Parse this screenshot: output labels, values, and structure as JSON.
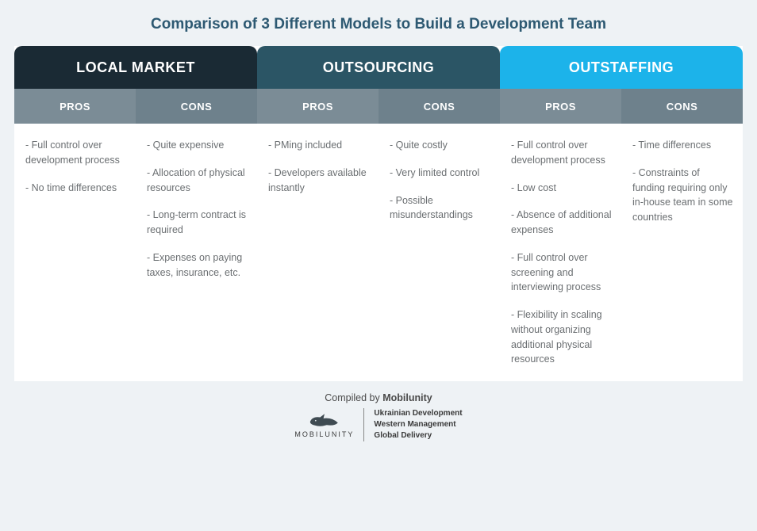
{
  "title": "Comparison of 3 Different Models to Build a Development Team",
  "labels": {
    "pros": "PROS",
    "cons": "CONS"
  },
  "models": [
    {
      "name": "LOCAL MARKET",
      "header_bg": "#1a2a34",
      "pros_bg": "#7b8c96",
      "cons_bg": "#6e818c",
      "pros": [
        "Full control over development process",
        "No time differences"
      ],
      "cons": [
        "Quite expensive",
        "Allocation of physical resources",
        "Long-term contract is required",
        "Expenses on paying taxes, insurance, etc."
      ]
    },
    {
      "name": "OUTSOURCING",
      "header_bg": "#2b5565",
      "pros_bg": "#7b8c96",
      "cons_bg": "#6e818c",
      "pros": [
        "PMing included",
        "Developers available instantly"
      ],
      "cons": [
        "Quite costly",
        "Very limited control",
        "Possible misunderstandings"
      ]
    },
    {
      "name": "OUTSTAFFING",
      "header_bg": "#1cb3ea",
      "pros_bg": "#7b8c96",
      "cons_bg": "#6e818c",
      "pros": [
        "Full control over development process",
        "Low cost",
        "Absence of additional expenses",
        "Full control over screening and interviewing process",
        "Flexibility in scaling without organizing additional physical resources"
      ],
      "cons": [
        "Time differences",
        "Constraints of funding requiring only in-house team in some countries"
      ]
    }
  ],
  "footer": {
    "compiled_prefix": "Compiled by ",
    "compiled_name": "Mobilunity",
    "logo_name": "MOBILUNITY",
    "tagline1": "Ukrainian Development",
    "tagline2": "Western Management",
    "tagline3": "Global Delivery"
  },
  "style": {
    "page_bg": "#eef2f5",
    "title_color": "#2d5972",
    "cell_text_color": "#6b6f72"
  }
}
